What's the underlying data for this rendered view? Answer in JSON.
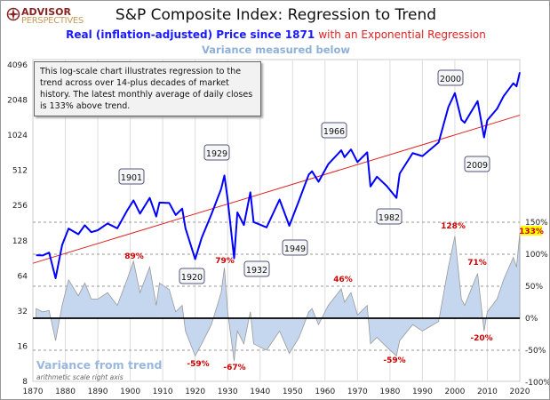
{
  "logo": {
    "line1": "ADVISOR",
    "line2": "PERSPECTIVES"
  },
  "chart_data": {
    "type": "line",
    "title": "S&P Composite Index: Regression to Trend",
    "subtitle_blue": "Real (inflation-adjusted) Price since 1871",
    "subtitle_red": "with an Exponential Regression",
    "subtitle2": "Variance measured below",
    "note": "This log-scale chart illustrates regression to the trend across over 14-plus decades of market history. The latest monthly average of daily closes is 133% above trend.",
    "variance_title": "Variance from trend",
    "variance_subtitle": "arithmetic scale right axis",
    "x_ticks": [
      "1870",
      "1880",
      "1890",
      "1900",
      "1910",
      "1920",
      "1930",
      "1940",
      "1950",
      "1960",
      "1970",
      "1980",
      "1990",
      "2000",
      "2010",
      "2020"
    ],
    "xlim": [
      1870,
      2020
    ],
    "left_axis": {
      "scale": "log2",
      "ticks": [
        "4096",
        "2048",
        "1024",
        "512",
        "256",
        "128",
        "64",
        "32",
        "16",
        "8"
      ],
      "ylim": [
        8,
        4096
      ]
    },
    "right_axis": {
      "ticks": [
        "150%",
        "100%",
        "50%",
        "0%",
        "-50%",
        "-100%"
      ],
      "ylim": [
        -100,
        150
      ]
    },
    "trend": {
      "start": [
        1870,
        82
      ],
      "end": [
        2020,
        1520
      ]
    },
    "variance_series": {
      "x": [
        1871,
        1873,
        1875,
        1877,
        1879,
        1881,
        1884,
        1886,
        1888,
        1890,
        1893,
        1896,
        1899,
        1901,
        1903,
        1906,
        1908,
        1909,
        1912,
        1914,
        1916,
        1917,
        1920,
        1922,
        1925,
        1928,
        1929,
        1930,
        1932,
        1933,
        1935,
        1937,
        1938,
        1942,
        1946,
        1949,
        1952,
        1955,
        1956,
        1958,
        1961,
        1965,
        1966,
        1968,
        1970,
        1973,
        1974,
        1976,
        1979,
        1982,
        1983,
        1987,
        1990,
        1995,
        1998,
        2000,
        2002,
        2003,
        2007,
        2009,
        2010,
        2013,
        2015,
        2018,
        2019,
        2020
      ],
      "values": [
        15,
        10,
        12,
        -35,
        20,
        60,
        35,
        55,
        30,
        30,
        40,
        20,
        60,
        89,
        40,
        80,
        20,
        55,
        45,
        10,
        20,
        -20,
        -59,
        -40,
        -10,
        40,
        79,
        10,
        -67,
        -20,
        -40,
        10,
        -40,
        -50,
        -20,
        -55,
        -30,
        10,
        15,
        -10,
        20,
        46,
        25,
        40,
        5,
        20,
        -40,
        -30,
        -45,
        -59,
        -35,
        -10,
        -20,
        -5,
        80,
        128,
        30,
        20,
        70,
        -20,
        10,
        30,
        60,
        95,
        80,
        133
      ]
    },
    "callouts": [
      "1901",
      "1929",
      "1920",
      "1932",
      "1949",
      "1966",
      "1982",
      "2000",
      "2009"
    ],
    "variance_labels": [
      "89%",
      "79%",
      "-59%",
      "-67%",
      "46%",
      "-59%",
      "128%",
      "71%",
      "-20%",
      "133%"
    ],
    "colors": {
      "price": "#0000ff",
      "trend": "#dd2222",
      "variance_fill": "#c5d7ee",
      "variance_line": "#999999",
      "label": "#cc0000",
      "highlight": "#ffff00"
    },
    "grid": true
  }
}
